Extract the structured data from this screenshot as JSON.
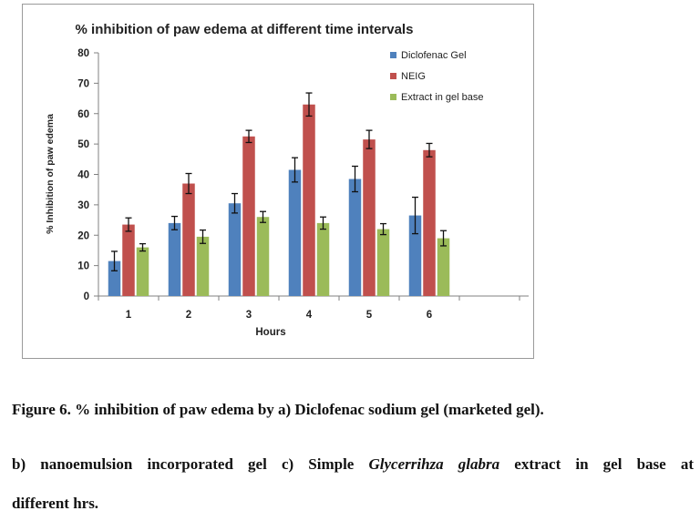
{
  "chart_data": {
    "type": "bar",
    "title": "% inhibition  of paw edema at different time  intervals",
    "xlabel": "Hours",
    "ylabel": "% Inhibition of paw edema",
    "categories": [
      "1",
      "2",
      "3",
      "4",
      "5",
      "6"
    ],
    "ylim": [
      0,
      80
    ],
    "yticks": [
      0,
      10,
      20,
      30,
      40,
      50,
      60,
      70,
      80
    ],
    "grid": false,
    "legend_position": "top-right",
    "error_bars": true,
    "series": [
      {
        "name": "Diclofenac Gel",
        "color": "#4f81bd",
        "values": [
          11.5,
          24,
          30.5,
          41.5,
          38.5,
          26.5
        ],
        "errors": [
          3.2,
          2.2,
          3.2,
          4,
          4.2,
          6
        ]
      },
      {
        "name": "NEIG",
        "color": "#c0504d",
        "values": [
          23.5,
          37,
          52.5,
          63,
          51.5,
          48
        ],
        "errors": [
          2.2,
          3.3,
          2,
          3.8,
          3,
          2.2
        ]
      },
      {
        "name": "Extract in gel base",
        "color": "#9bbb59",
        "values": [
          16,
          19.5,
          26,
          24,
          22,
          19
        ],
        "errors": [
          1.2,
          2.2,
          1.8,
          2,
          1.8,
          2.5
        ]
      }
    ]
  },
  "caption": {
    "line1": "Figure 6. % inhibition  of paw edema by a) Diclofenac sodium gel (marketed gel).",
    "line2_start": "b)  nanoemulsion  incorporated  gel  c)  Simple ",
    "line2_italic": "Glycerrihza glabra",
    "line2_end": " extract  in  gel  base  at",
    "line3": "different hrs."
  }
}
